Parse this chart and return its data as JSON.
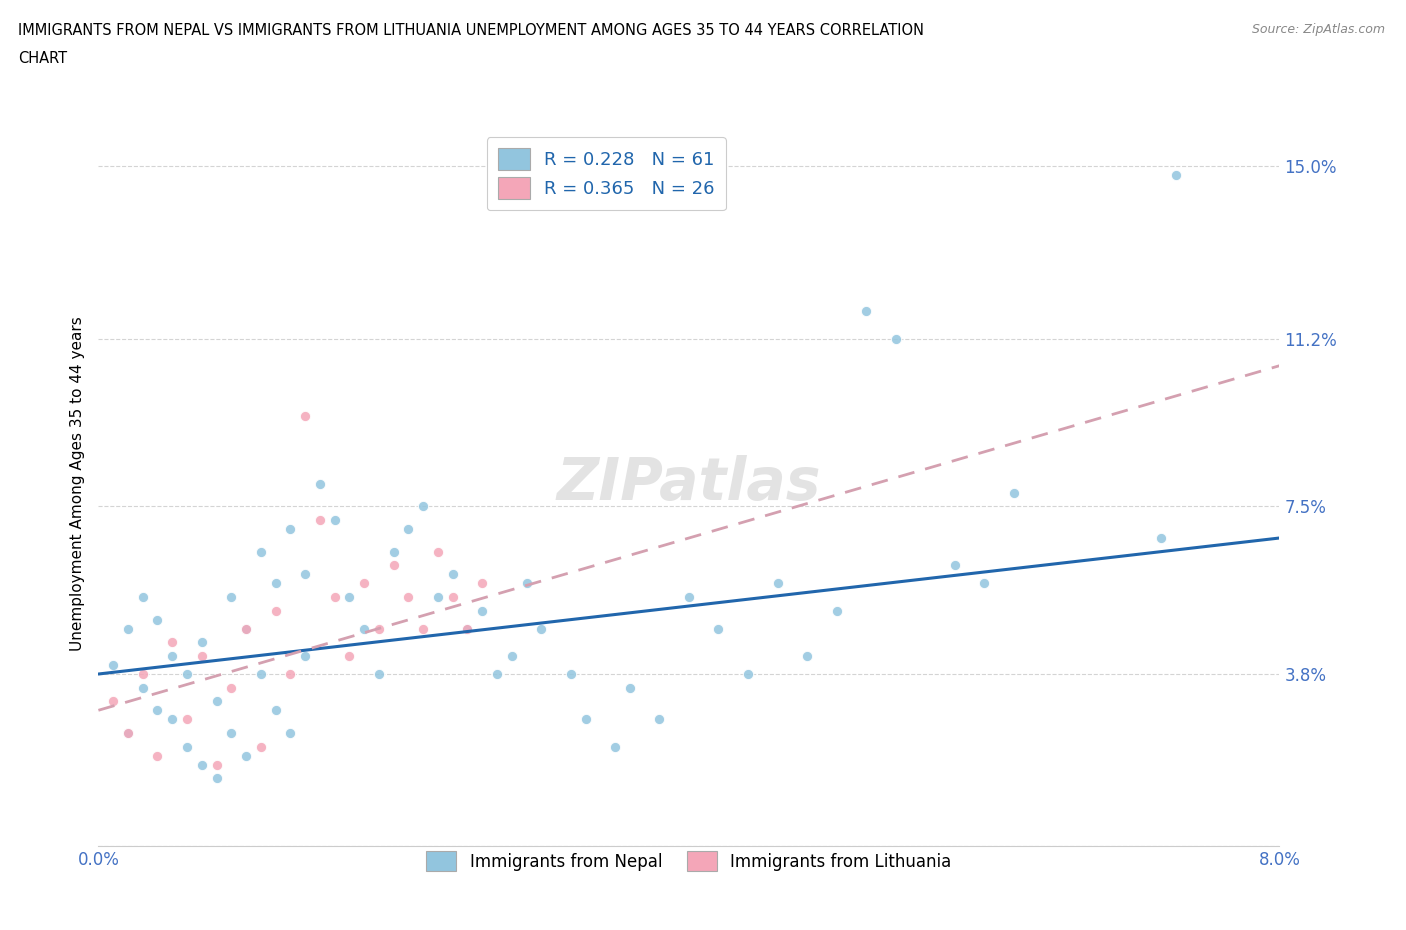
{
  "title_line1": "IMMIGRANTS FROM NEPAL VS IMMIGRANTS FROM LITHUANIA UNEMPLOYMENT AMONG AGES 35 TO 44 YEARS CORRELATION",
  "title_line2": "CHART",
  "source": "Source: ZipAtlas.com",
  "ylabel": "Unemployment Among Ages 35 to 44 years",
  "xlim": [
    0.0,
    0.08
  ],
  "ylim": [
    0.0,
    0.16
  ],
  "yticks": [
    0.0,
    0.038,
    0.075,
    0.112,
    0.15
  ],
  "ytick_labels": [
    "",
    "3.8%",
    "7.5%",
    "11.2%",
    "15.0%"
  ],
  "xticks": [
    0.0,
    0.02,
    0.04,
    0.06,
    0.08
  ],
  "xtick_labels": [
    "0.0%",
    "",
    "",
    "",
    "8.0%"
  ],
  "nepal_color": "#92c5de",
  "lithuania_color": "#f4a6b8",
  "nepal_R": 0.228,
  "nepal_N": 61,
  "lithuania_R": 0.365,
  "lithuania_N": 26,
  "nepal_line_color": "#2166ac",
  "lithuania_line_color": "#d4a0b0",
  "background_color": "#ffffff",
  "grid_color": "#d0d0d0",
  "nepal_x": [
    0.001,
    0.002,
    0.002,
    0.003,
    0.003,
    0.004,
    0.004,
    0.005,
    0.005,
    0.006,
    0.006,
    0.007,
    0.007,
    0.008,
    0.008,
    0.009,
    0.009,
    0.01,
    0.01,
    0.011,
    0.011,
    0.012,
    0.012,
    0.013,
    0.013,
    0.014,
    0.014,
    0.015,
    0.016,
    0.017,
    0.018,
    0.019,
    0.02,
    0.021,
    0.022,
    0.023,
    0.024,
    0.025,
    0.026,
    0.027,
    0.028,
    0.029,
    0.03,
    0.032,
    0.033,
    0.035,
    0.036,
    0.038,
    0.04,
    0.042,
    0.044,
    0.046,
    0.048,
    0.05,
    0.052,
    0.054,
    0.058,
    0.06,
    0.062,
    0.072,
    0.073
  ],
  "nepal_y": [
    0.04,
    0.025,
    0.048,
    0.035,
    0.055,
    0.03,
    0.05,
    0.028,
    0.042,
    0.022,
    0.038,
    0.018,
    0.045,
    0.015,
    0.032,
    0.025,
    0.055,
    0.02,
    0.048,
    0.038,
    0.065,
    0.03,
    0.058,
    0.025,
    0.07,
    0.042,
    0.06,
    0.08,
    0.072,
    0.055,
    0.048,
    0.038,
    0.065,
    0.07,
    0.075,
    0.055,
    0.06,
    0.048,
    0.052,
    0.038,
    0.042,
    0.058,
    0.048,
    0.038,
    0.028,
    0.022,
    0.035,
    0.028,
    0.055,
    0.048,
    0.038,
    0.058,
    0.042,
    0.052,
    0.118,
    0.112,
    0.062,
    0.058,
    0.078,
    0.068,
    0.148
  ],
  "lith_x": [
    0.001,
    0.002,
    0.003,
    0.004,
    0.005,
    0.006,
    0.007,
    0.008,
    0.009,
    0.01,
    0.011,
    0.012,
    0.013,
    0.014,
    0.015,
    0.016,
    0.017,
    0.018,
    0.019,
    0.02,
    0.021,
    0.022,
    0.023,
    0.024,
    0.025,
    0.026
  ],
  "lith_y": [
    0.032,
    0.025,
    0.038,
    0.02,
    0.045,
    0.028,
    0.042,
    0.018,
    0.035,
    0.048,
    0.022,
    0.052,
    0.038,
    0.095,
    0.072,
    0.055,
    0.042,
    0.058,
    0.048,
    0.062,
    0.055,
    0.048,
    0.065,
    0.055,
    0.048,
    0.058
  ],
  "nepal_trend_x": [
    0.0,
    0.08
  ],
  "nepal_trend_y": [
    0.038,
    0.068
  ],
  "lith_trend_x": [
    0.0,
    0.04
  ],
  "lith_trend_y": [
    0.03,
    0.068
  ]
}
